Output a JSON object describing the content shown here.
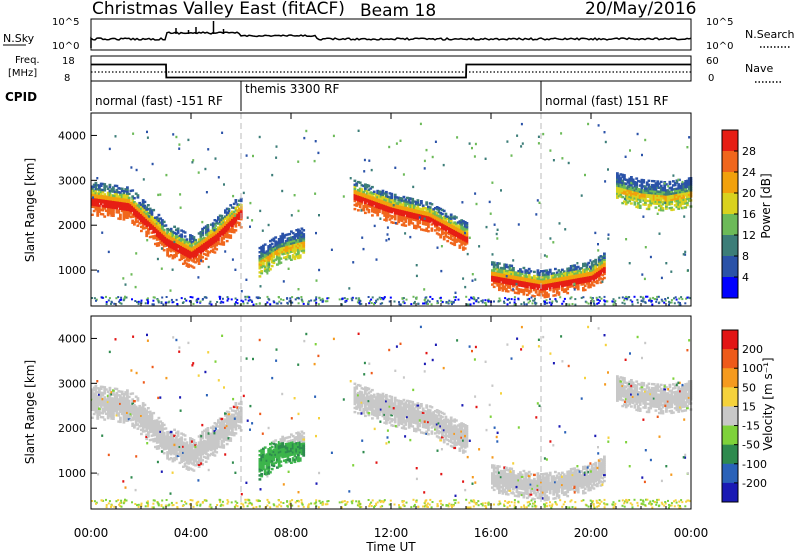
{
  "header": {
    "title": "Christmas Valley East (fitACF)",
    "beam": "Beam 18",
    "date": "20/May/2016"
  },
  "status_panels": {
    "nsky_label": "N.Sky",
    "nsky_ticks": [
      "10^5",
      "10^0"
    ],
    "nsearch_label": "N.Search",
    "nsearch_ticks": [
      "10^5",
      "10^0"
    ],
    "freq_label_1": "Freq.",
    "freq_label_2": "[MHz]",
    "freq_ticks": [
      "18",
      "8"
    ],
    "nave_label": "Nave",
    "nave_ticks": [
      "60",
      "0"
    ],
    "cpid_label": "CPID",
    "cpid_segments": [
      {
        "label": "normal (fast) -151 RF",
        "start_h": 0,
        "end_h": 6
      },
      {
        "label": "themis 3300 RF",
        "start_h": 6,
        "end_h": 18
      },
      {
        "label": "normal (fast) 151 RF",
        "start_h": 18,
        "end_h": 24
      }
    ],
    "freq_mhz_series": [
      {
        "h": 0,
        "v": 14.6
      },
      {
        "h": 3,
        "v": 14.6
      },
      {
        "h": 3.01,
        "v": 9.4
      },
      {
        "h": 15,
        "v": 9.4
      },
      {
        "h": 15.01,
        "v": 14.6
      },
      {
        "h": 24,
        "v": 14.6
      }
    ]
  },
  "chart_data": [
    {
      "type": "heatmap",
      "name": "power",
      "ylabel": "Slant Range [km]",
      "yticks": [
        1000,
        2000,
        3000,
        4000
      ],
      "ylim": [
        200,
        4500
      ],
      "xlim": [
        0,
        24
      ],
      "colorbar_label": "Power [dB]",
      "colorbar_ticks": [
        "28",
        "24",
        "20",
        "16",
        "12",
        "8",
        "4"
      ],
      "colorbar_colors": [
        "#0000ff",
        "#2a52a8",
        "#3c7d78",
        "#6cba58",
        "#d9d21e",
        "#f2a10c",
        "#f0661c",
        "#e61e14"
      ],
      "echo_bands": [
        {
          "h": [
            0,
            1.5,
            3,
            4,
            5,
            6
          ],
          "center_km": [
            2600,
            2480,
            1700,
            1400,
            1800,
            2350
          ],
          "width_km": 260
        },
        {
          "h": [
            6.7,
            7.5,
            8.5
          ],
          "center_km": [
            1200,
            1500,
            1650
          ],
          "width_km": 240
        },
        {
          "h": [
            10.5,
            12,
            13.5,
            15
          ],
          "center_km": [
            2700,
            2400,
            2200,
            1750
          ],
          "width_km": 240
        },
        {
          "h": [
            16,
            17,
            18,
            19,
            20,
            20.5
          ],
          "center_km": [
            900,
            800,
            700,
            800,
            900,
            1100
          ],
          "width_km": 220
        },
        {
          "h": [
            21,
            22,
            23,
            24
          ],
          "center_km": [
            2850,
            2700,
            2650,
            2750
          ],
          "width_km": 230
        }
      ]
    },
    {
      "type": "heatmap",
      "name": "velocity",
      "ylabel": "Slant Range [km]",
      "yticks": [
        1000,
        2000,
        3000,
        4000
      ],
      "ylim": [
        200,
        4500
      ],
      "xlim": [
        0,
        24
      ],
      "xlabel": "Time UT",
      "xticks": [
        "00:00",
        "04:00",
        "08:00",
        "12:00",
        "16:00",
        "20:00",
        "00:00"
      ],
      "colorbar_label": "Velocity [m s⁻¹]",
      "colorbar_ticks": [
        "200",
        "100",
        "50",
        "15",
        "-15",
        "-50",
        "-100",
        "-200"
      ],
      "colorbar_colors": [
        "#1a1ab4",
        "#2a62b8",
        "#2e8a4e",
        "#7ed23a",
        "#c8c8c8",
        "#f5d23c",
        "#f59a1e",
        "#ee5a1a",
        "#e21414"
      ],
      "gs_color": "#c8c8c8",
      "green_patch": {
        "h": [
          6.5,
          8.5
        ],
        "km": [
          800,
          1700
        ],
        "color": "#3cb44b"
      }
    }
  ]
}
